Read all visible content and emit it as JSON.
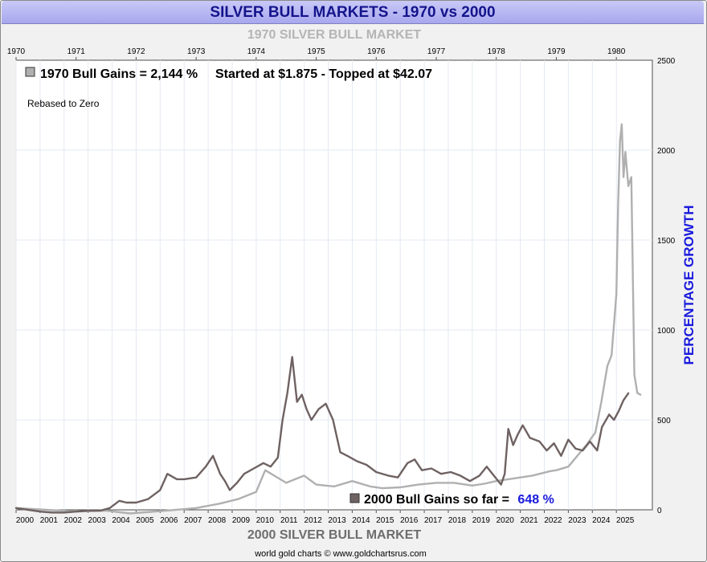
{
  "title": "SILVER BULL MARKETS - 1970 vs 2000",
  "top_subtitle": "1970 SILVER BULL MARKET",
  "bottom_subtitle": "2000 SILVER BULL MARKET",
  "credit": "world gold charts © www.goldchartsrus.com",
  "annotations": {
    "gain_1970": "1970 Bull Gains = 2,144 %",
    "started": "Started at $1.875 - Topped at $42.07",
    "rebased": "Rebased to Zero",
    "gain_2000_label": "2000 Bull Gains so far =",
    "gain_2000_value": "648 %"
  },
  "colors": {
    "series_1970": "#b0b0b0",
    "series_2000": "#6f6262",
    "highlight_value": "#1a1add",
    "title_text": "#14148c"
  },
  "chart_data": {
    "type": "line",
    "title": "SILVER BULL MARKETS - 1970 vs 2000",
    "y_right_label": "PERCENTAGE GROWTH",
    "ylim": [
      0,
      2500
    ],
    "y_ticks": [
      0,
      500,
      1000,
      1500,
      2000,
      2500
    ],
    "grid": true,
    "x_top_ticks": [
      "1970",
      "1971",
      "1972",
      "1973",
      "1974",
      "1975",
      "1976",
      "1977",
      "1978",
      "1979",
      "1980"
    ],
    "x_bottom_ticks": [
      "2000",
      "2001",
      "2002",
      "2003",
      "2004",
      "2005",
      "2006",
      "2007",
      "2008",
      "2009",
      "2010",
      "2011",
      "2012",
      "2013",
      "2014",
      "2015",
      "2016",
      "2017",
      "2018",
      "2019",
      "2020",
      "2021",
      "2022",
      "2023",
      "2024",
      "2025"
    ],
    "series": [
      {
        "name": "1970 SILVER BULL MARKET",
        "axis": "top",
        "x": [
          1970.0,
          1970.5,
          1971.0,
          1971.5,
          1971.9,
          1972.5,
          1973.0,
          1973.4,
          1973.7,
          1974.0,
          1974.15,
          1974.3,
          1974.5,
          1974.8,
          1975.0,
          1975.3,
          1975.6,
          1975.9,
          1976.1,
          1976.4,
          1976.7,
          1977.0,
          1977.3,
          1977.6,
          1977.8,
          1978.0,
          1978.3,
          1978.6,
          1978.9,
          1979.0,
          1979.2,
          1979.35,
          1979.5,
          1979.65,
          1979.75,
          1979.85,
          1979.92,
          1980.0,
          1980.03,
          1980.06,
          1980.09,
          1980.12,
          1980.15,
          1980.2,
          1980.25,
          1980.3,
          1980.35,
          1980.4
        ],
        "values": [
          10,
          0,
          -10,
          -5,
          -20,
          -5,
          10,
          35,
          60,
          100,
          220,
          190,
          150,
          190,
          140,
          130,
          160,
          130,
          120,
          125,
          140,
          150,
          150,
          135,
          145,
          160,
          175,
          190,
          215,
          220,
          240,
          300,
          360,
          430,
          600,
          800,
          860,
          1200,
          1700,
          2050,
          2144,
          1850,
          1990,
          1800,
          1850,
          750,
          650,
          640
        ]
      },
      {
        "name": "2000 SILVER BULL MARKET",
        "axis": "bottom",
        "x": [
          2000.0,
          2001.0,
          2001.5,
          2002.0,
          2002.5,
          2003.0,
          2003.5,
          2003.9,
          2004.3,
          2004.6,
          2005.0,
          2005.5,
          2006.0,
          2006.3,
          2006.7,
          2007.0,
          2007.5,
          2007.9,
          2008.2,
          2008.5,
          2008.7,
          2008.9,
          2009.2,
          2009.5,
          2009.9,
          2010.3,
          2010.6,
          2010.9,
          2011.1,
          2011.3,
          2011.5,
          2011.7,
          2011.9,
          2012.1,
          2012.3,
          2012.6,
          2012.9,
          2013.2,
          2013.5,
          2013.8,
          2014.2,
          2014.6,
          2015.0,
          2015.5,
          2015.9,
          2016.3,
          2016.6,
          2016.9,
          2017.3,
          2017.7,
          2018.1,
          2018.5,
          2018.9,
          2019.3,
          2019.6,
          2019.9,
          2020.2,
          2020.35,
          2020.5,
          2020.7,
          2020.9,
          2021.1,
          2021.4,
          2021.8,
          2022.1,
          2022.4,
          2022.7,
          2023.0,
          2023.3,
          2023.6,
          2023.9,
          2024.2,
          2024.4,
          2024.7,
          2024.9,
          2025.1,
          2025.3,
          2025.5
        ],
        "values": [
          10,
          -10,
          -15,
          -15,
          -10,
          -5,
          -5,
          10,
          50,
          40,
          40,
          60,
          110,
          200,
          170,
          170,
          180,
          240,
          300,
          200,
          160,
          110,
          150,
          200,
          230,
          260,
          240,
          290,
          500,
          650,
          850,
          600,
          640,
          560,
          500,
          560,
          590,
          500,
          320,
          300,
          270,
          250,
          210,
          190,
          180,
          260,
          280,
          220,
          230,
          200,
          210,
          190,
          160,
          190,
          240,
          190,
          140,
          200,
          450,
          360,
          420,
          470,
          400,
          380,
          330,
          370,
          300,
          390,
          340,
          330,
          380,
          330,
          460,
          530,
          500,
          550,
          610,
          648
        ]
      }
    ]
  }
}
